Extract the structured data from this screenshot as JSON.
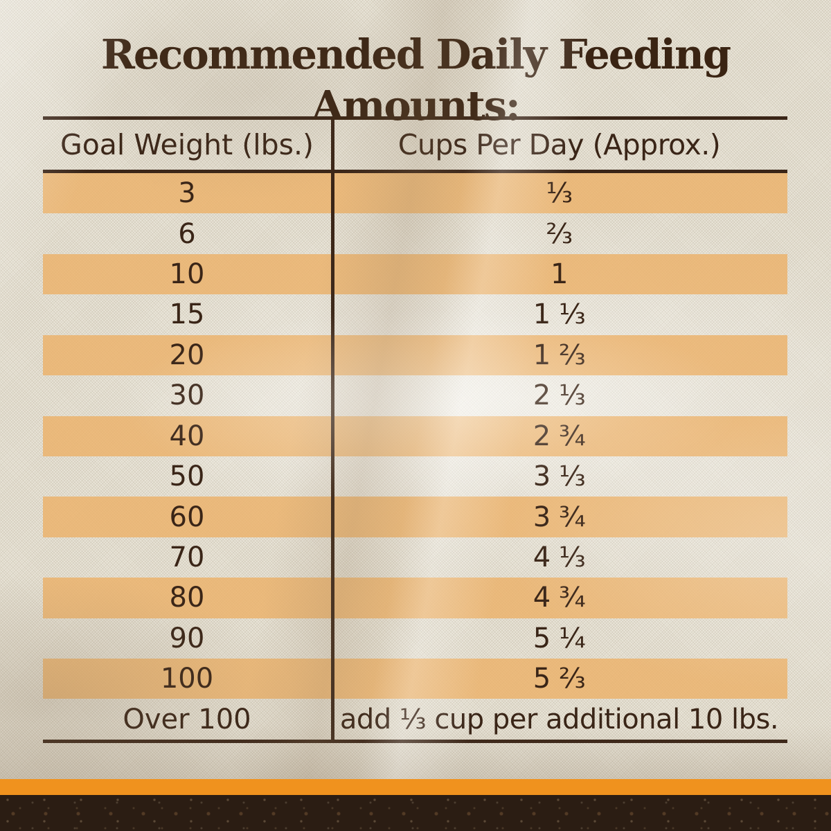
{
  "title": "Recommended Daily Feeding Amounts:",
  "table": {
    "columns": [
      "Goal Weight (lbs.)",
      "Cups Per Day (Approx.)"
    ],
    "rows": [
      {
        "goal_weight": "3",
        "cups_per_day": "⅓"
      },
      {
        "goal_weight": "6",
        "cups_per_day": "⅔"
      },
      {
        "goal_weight": "10",
        "cups_per_day": "1"
      },
      {
        "goal_weight": "15",
        "cups_per_day": "1 ⅓"
      },
      {
        "goal_weight": "20",
        "cups_per_day": "1 ⅔"
      },
      {
        "goal_weight": "30",
        "cups_per_day": "2 ⅓"
      },
      {
        "goal_weight": "40",
        "cups_per_day": "2 ¾"
      },
      {
        "goal_weight": "50",
        "cups_per_day": "3 ⅓"
      },
      {
        "goal_weight": "60",
        "cups_per_day": "3 ¾"
      },
      {
        "goal_weight": "70",
        "cups_per_day": "4 ⅓"
      },
      {
        "goal_weight": "80",
        "cups_per_day": "4 ¾"
      },
      {
        "goal_weight": "90",
        "cups_per_day": "5 ¼"
      },
      {
        "goal_weight": "100",
        "cups_per_day": "5 ⅔"
      },
      {
        "goal_weight": "Over 100",
        "cups_per_day": "add ⅓ cup per additional 10 lbs."
      }
    ]
  },
  "colors": {
    "text_brown": "#3A2517",
    "title_brown": "#3A2413",
    "stripe_orange": "#ECB169",
    "accent_bar_orange": "#F0921E",
    "fabric_cream": "#E7E2D4",
    "soil_brown": "#2B1D13"
  }
}
